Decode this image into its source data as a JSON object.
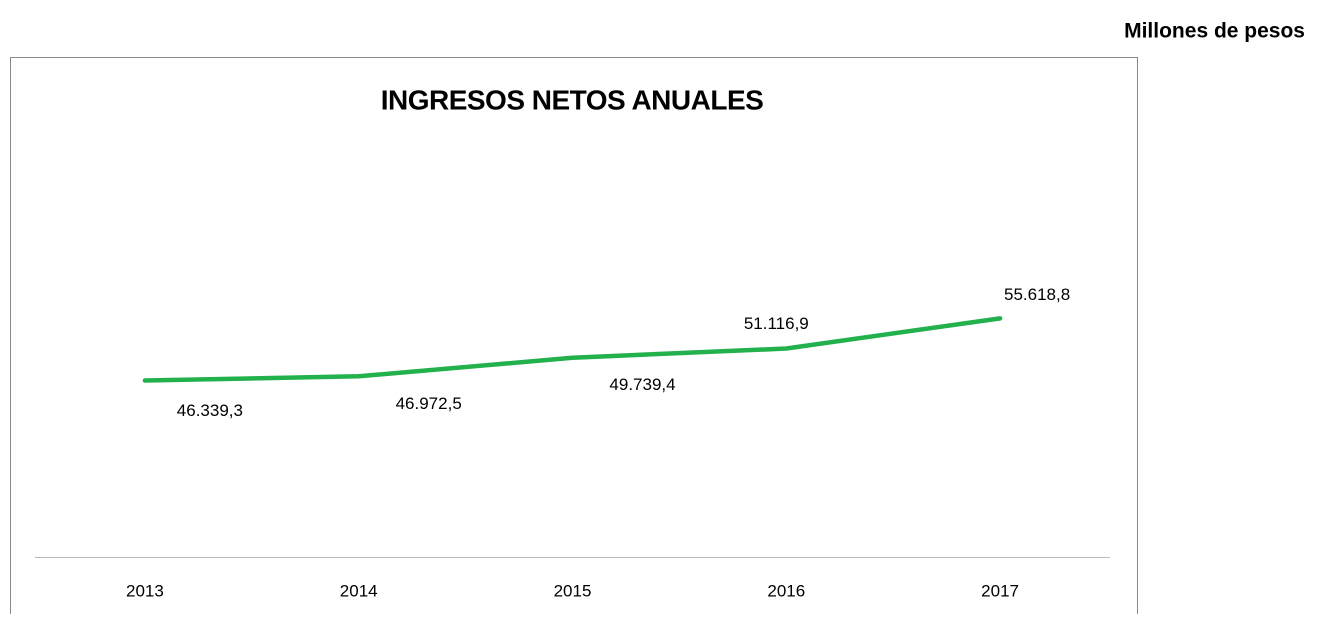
{
  "chart_data": {
    "type": "line",
    "title": "INGRESOS NETOS ANUALES",
    "subtitle": "Millones de pesos",
    "categories": [
      "2013",
      "2014",
      "2015",
      "2016",
      "2017"
    ],
    "series": [
      {
        "name": "Ingresos netos",
        "color": "#22b14c",
        "values": [
          46339.3,
          46972.5,
          49739.4,
          51116.9,
          55618.8
        ],
        "value_labels": [
          "46.339,3",
          "46.972,5",
          "49.739,4",
          "51.116,9",
          "55.618,8"
        ]
      }
    ],
    "ylim": [
      20000,
      80000
    ]
  }
}
